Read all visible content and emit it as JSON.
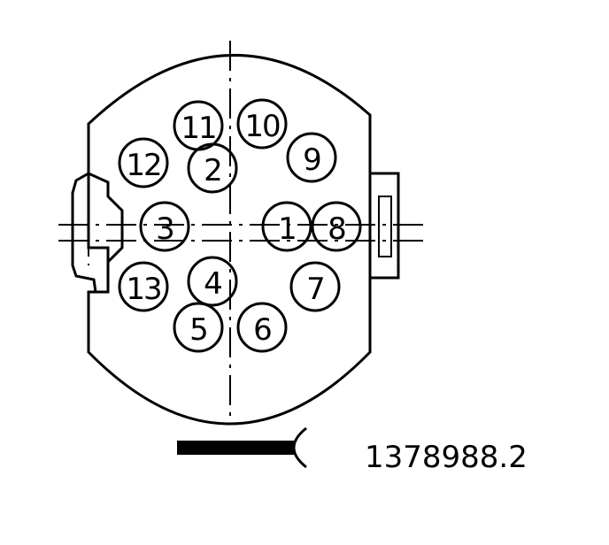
{
  "diagram": {
    "reference_number": "1378988.2",
    "colors": {
      "line": "#000000",
      "background": "#ffffff"
    },
    "pins": [
      {
        "label": "1"
      },
      {
        "label": "2"
      },
      {
        "label": "3"
      },
      {
        "label": "4"
      },
      {
        "label": "5"
      },
      {
        "label": "6"
      },
      {
        "label": "7"
      },
      {
        "label": "8"
      },
      {
        "label": "9"
      },
      {
        "label": "10"
      },
      {
        "label": "11"
      },
      {
        "label": "12"
      },
      {
        "label": "13"
      }
    ]
  }
}
